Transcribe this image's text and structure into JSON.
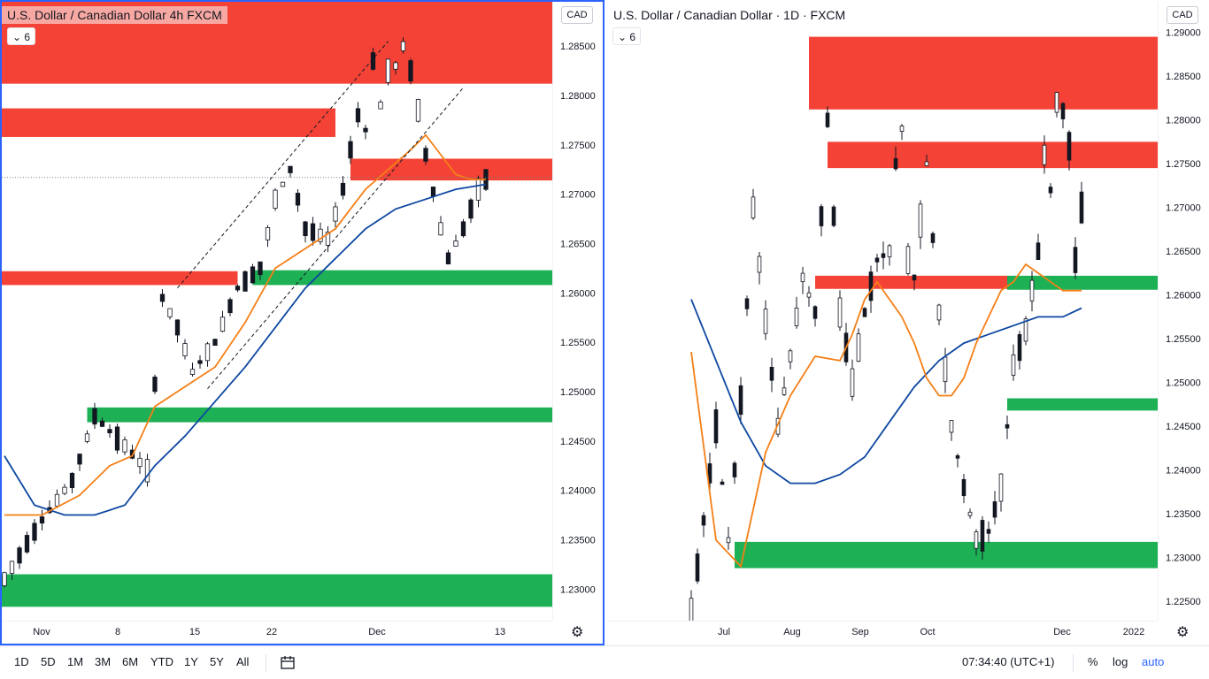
{
  "left_chart": {
    "title": "U.S. Dollar / Canadian Dollar  4h  FXCM",
    "indicator_count": "6",
    "currency": "CAD",
    "time_labels": [
      "Nov",
      "8",
      "15",
      "22",
      "Dec",
      "13"
    ],
    "price_labels": [
      "1.28500",
      "1.28000",
      "1.27500",
      "1.27000",
      "1.26500",
      "1.26000",
      "1.25500",
      "1.25000",
      "1.24500",
      "1.24000",
      "1.23500",
      "1.23000"
    ]
  },
  "right_chart": {
    "title": "U.S. Dollar / Canadian Dollar · 1D · FXCM",
    "indicator_count": "6",
    "currency": "CAD",
    "time_labels": [
      "Jul",
      "Aug",
      "Sep",
      "Oct",
      "Dec",
      "2022"
    ],
    "price_labels": [
      "1.29000",
      "1.28500",
      "1.28000",
      "1.27500",
      "1.27000",
      "1.26500",
      "1.26000",
      "1.25500",
      "1.25000",
      "1.24500",
      "1.24000",
      "1.23500",
      "1.23000",
      "1.22500"
    ]
  },
  "bottom_bar": {
    "timeframes": [
      "1D",
      "5D",
      "1M",
      "3M",
      "6M",
      "YTD",
      "1Y",
      "5Y",
      "All"
    ],
    "clock": "07:34:40 (UTC+1)",
    "percent": "%",
    "log": "log",
    "auto": "auto"
  },
  "colors": {
    "supply_zone": "#f44336",
    "demand_zone": "#1db055",
    "ema_fast": "#f57f17",
    "ema_slow": "#0d47a1",
    "candle": "#131722",
    "accent": "#2962ff"
  },
  "chart_data": [
    {
      "type": "candlestick",
      "title": "U.S. Dollar / Canadian Dollar  4h  FXCM",
      "ylim": [
        1.2268,
        1.2895
      ],
      "x_ticks": [
        "Nov",
        "8",
        "15",
        "22",
        "Dec",
        "13"
      ],
      "y_ticks": [
        1.285,
        1.28,
        1.275,
        1.27,
        1.265,
        1.26,
        1.255,
        1.25,
        1.245,
        1.24,
        1.235,
        1.23
      ],
      "price_path": [
        [
          0,
          1.231
        ],
        [
          5,
          1.237
        ],
        [
          9,
          1.241
        ],
        [
          12,
          1.2475
        ],
        [
          16,
          1.2445
        ],
        [
          19,
          1.242
        ],
        [
          21,
          1.2595
        ],
        [
          23,
          1.2565
        ],
        [
          25,
          1.252
        ],
        [
          28,
          1.255
        ],
        [
          31,
          1.2605
        ],
        [
          34,
          1.2625
        ],
        [
          36,
          1.2695
        ],
        [
          38,
          1.2725
        ],
        [
          40,
          1.2665
        ],
        [
          43,
          1.2655
        ],
        [
          45,
          1.2705
        ],
        [
          46,
          1.2745
        ],
        [
          47,
          1.278
        ],
        [
          48,
          1.2765
        ],
        [
          49,
          1.2835
        ],
        [
          50,
          1.279
        ],
        [
          51,
          1.2825
        ],
        [
          52,
          1.283
        ],
        [
          53,
          1.285
        ],
        [
          54,
          1.2825
        ],
        [
          55,
          1.2785
        ],
        [
          56,
          1.274
        ],
        [
          58,
          1.2665
        ],
        [
          59,
          1.2635
        ],
        [
          61,
          1.2665
        ],
        [
          63,
          1.2705
        ],
        [
          64,
          1.2715
        ]
      ],
      "ema_fast_path": [
        [
          0,
          1.2375
        ],
        [
          5,
          1.2375
        ],
        [
          10,
          1.2395
        ],
        [
          14,
          1.2425
        ],
        [
          17,
          1.2435
        ],
        [
          20,
          1.2485
        ],
        [
          24,
          1.2505
        ],
        [
          28,
          1.2525
        ],
        [
          32,
          1.257
        ],
        [
          36,
          1.2625
        ],
        [
          40,
          1.2645
        ],
        [
          44,
          1.2665
        ],
        [
          48,
          1.2705
        ],
        [
          51,
          1.2725
        ],
        [
          54,
          1.2745
        ],
        [
          56,
          1.276
        ],
        [
          58,
          1.274
        ],
        [
          60,
          1.272
        ],
        [
          62,
          1.2715
        ],
        [
          64,
          1.2715
        ]
      ],
      "ema_slow_path": [
        [
          0,
          1.2435
        ],
        [
          4,
          1.2385
        ],
        [
          8,
          1.2375
        ],
        [
          12,
          1.2375
        ],
        [
          16,
          1.2385
        ],
        [
          20,
          1.2425
        ],
        [
          24,
          1.2455
        ],
        [
          28,
          1.249
        ],
        [
          32,
          1.2525
        ],
        [
          36,
          1.2565
        ],
        [
          40,
          1.2605
        ],
        [
          44,
          1.2635
        ],
        [
          48,
          1.2665
        ],
        [
          52,
          1.2685
        ],
        [
          56,
          1.2695
        ],
        [
          60,
          1.2705
        ],
        [
          64,
          1.271
        ]
      ],
      "supply_zones": [
        [
          0,
          64,
          1.2812,
          1.2895
        ],
        [
          0,
          44,
          1.2758,
          1.2787
        ],
        [
          46,
          64,
          1.2714,
          1.2736
        ],
        [
          0,
          31,
          1.2608,
          1.2622
        ]
      ],
      "demand_zones": [
        [
          33,
          64,
          1.2608,
          1.2623
        ],
        [
          11,
          64,
          1.2469,
          1.2484
        ],
        [
          0,
          64,
          1.2282,
          1.2315
        ]
      ],
      "current_price": 1.2717
    },
    {
      "type": "candlestick",
      "title": "U.S. Dollar / Canadian Dollar · 1D · FXCM",
      "ylim": [
        1.2228,
        1.2935
      ],
      "x_ticks": [
        "Jul",
        "Aug",
        "Sep",
        "Oct",
        "Dec",
        "2022"
      ],
      "y_ticks": [
        1.29,
        1.285,
        1.28,
        1.275,
        1.27,
        1.265,
        1.26,
        1.255,
        1.25,
        1.245,
        1.24,
        1.235,
        1.23,
        1.225
      ],
      "price_path": [
        [
          0,
          1.2235
        ],
        [
          4,
          1.245
        ],
        [
          6,
          1.232
        ],
        [
          8,
          1.248
        ],
        [
          10,
          1.27
        ],
        [
          12,
          1.257
        ],
        [
          14,
          1.245
        ],
        [
          16,
          1.253
        ],
        [
          18,
          1.262
        ],
        [
          20,
          1.258
        ],
        [
          22,
          1.28
        ],
        [
          24,
          1.258
        ],
        [
          26,
          1.25
        ],
        [
          28,
          1.258
        ],
        [
          30,
          1.264
        ],
        [
          32,
          1.265
        ],
        [
          33,
          1.275
        ],
        [
          34,
          1.279
        ],
        [
          35,
          1.264
        ],
        [
          36,
          1.262
        ],
        [
          38,
          1.275
        ],
        [
          40,
          1.258
        ],
        [
          42,
          1.245
        ],
        [
          44,
          1.238
        ],
        [
          46,
          1.232
        ],
        [
          48,
          1.233
        ],
        [
          50,
          1.238
        ],
        [
          52,
          1.252
        ],
        [
          54,
          1.256
        ],
        [
          56,
          1.265
        ],
        [
          57,
          1.276
        ],
        [
          58,
          1.272
        ],
        [
          59,
          1.282
        ],
        [
          60,
          1.281
        ],
        [
          61,
          1.277
        ],
        [
          62,
          1.264
        ],
        [
          63,
          1.27
        ]
      ],
      "ema_fast_path": [
        [
          0,
          1.2535
        ],
        [
          4,
          1.232
        ],
        [
          8,
          1.229
        ],
        [
          12,
          1.242
        ],
        [
          16,
          1.2485
        ],
        [
          20,
          1.253
        ],
        [
          24,
          1.2525
        ],
        [
          26,
          1.2555
        ],
        [
          28,
          1.2595
        ],
        [
          30,
          1.2615
        ],
        [
          32,
          1.2595
        ],
        [
          34,
          1.2575
        ],
        [
          36,
          1.2545
        ],
        [
          38,
          1.2505
        ],
        [
          40,
          1.2485
        ],
        [
          42,
          1.2485
        ],
        [
          44,
          1.2505
        ],
        [
          46,
          1.2545
        ],
        [
          48,
          1.2575
        ],
        [
          50,
          1.2605
        ],
        [
          52,
          1.2615
        ],
        [
          54,
          1.2635
        ],
        [
          56,
          1.2625
        ],
        [
          58,
          1.2615
        ],
        [
          60,
          1.2605
        ],
        [
          63,
          1.2605
        ]
      ],
      "ema_slow_path": [
        [
          0,
          1.2595
        ],
        [
          4,
          1.2525
        ],
        [
          8,
          1.2455
        ],
        [
          12,
          1.2405
        ],
        [
          16,
          1.2385
        ],
        [
          20,
          1.2385
        ],
        [
          24,
          1.2395
        ],
        [
          28,
          1.2415
        ],
        [
          32,
          1.2455
        ],
        [
          36,
          1.2495
        ],
        [
          40,
          1.2525
        ],
        [
          44,
          1.2545
        ],
        [
          48,
          1.2555
        ],
        [
          52,
          1.2565
        ],
        [
          56,
          1.2575
        ],
        [
          60,
          1.2575
        ],
        [
          63,
          1.2585
        ]
      ],
      "supply_zones": [
        [
          19,
          63,
          1.2812,
          1.2895
        ],
        [
          22,
          63,
          1.2745,
          1.2775
        ],
        [
          20,
          51,
          1.2607,
          1.2622
        ]
      ],
      "demand_zones": [
        [
          7,
          63,
          1.2288,
          1.2318
        ],
        [
          51,
          63,
          1.2468,
          1.2482
        ],
        [
          51,
          63,
          1.2606,
          1.2622
        ]
      ],
      "current_price": 1.2717
    }
  ]
}
